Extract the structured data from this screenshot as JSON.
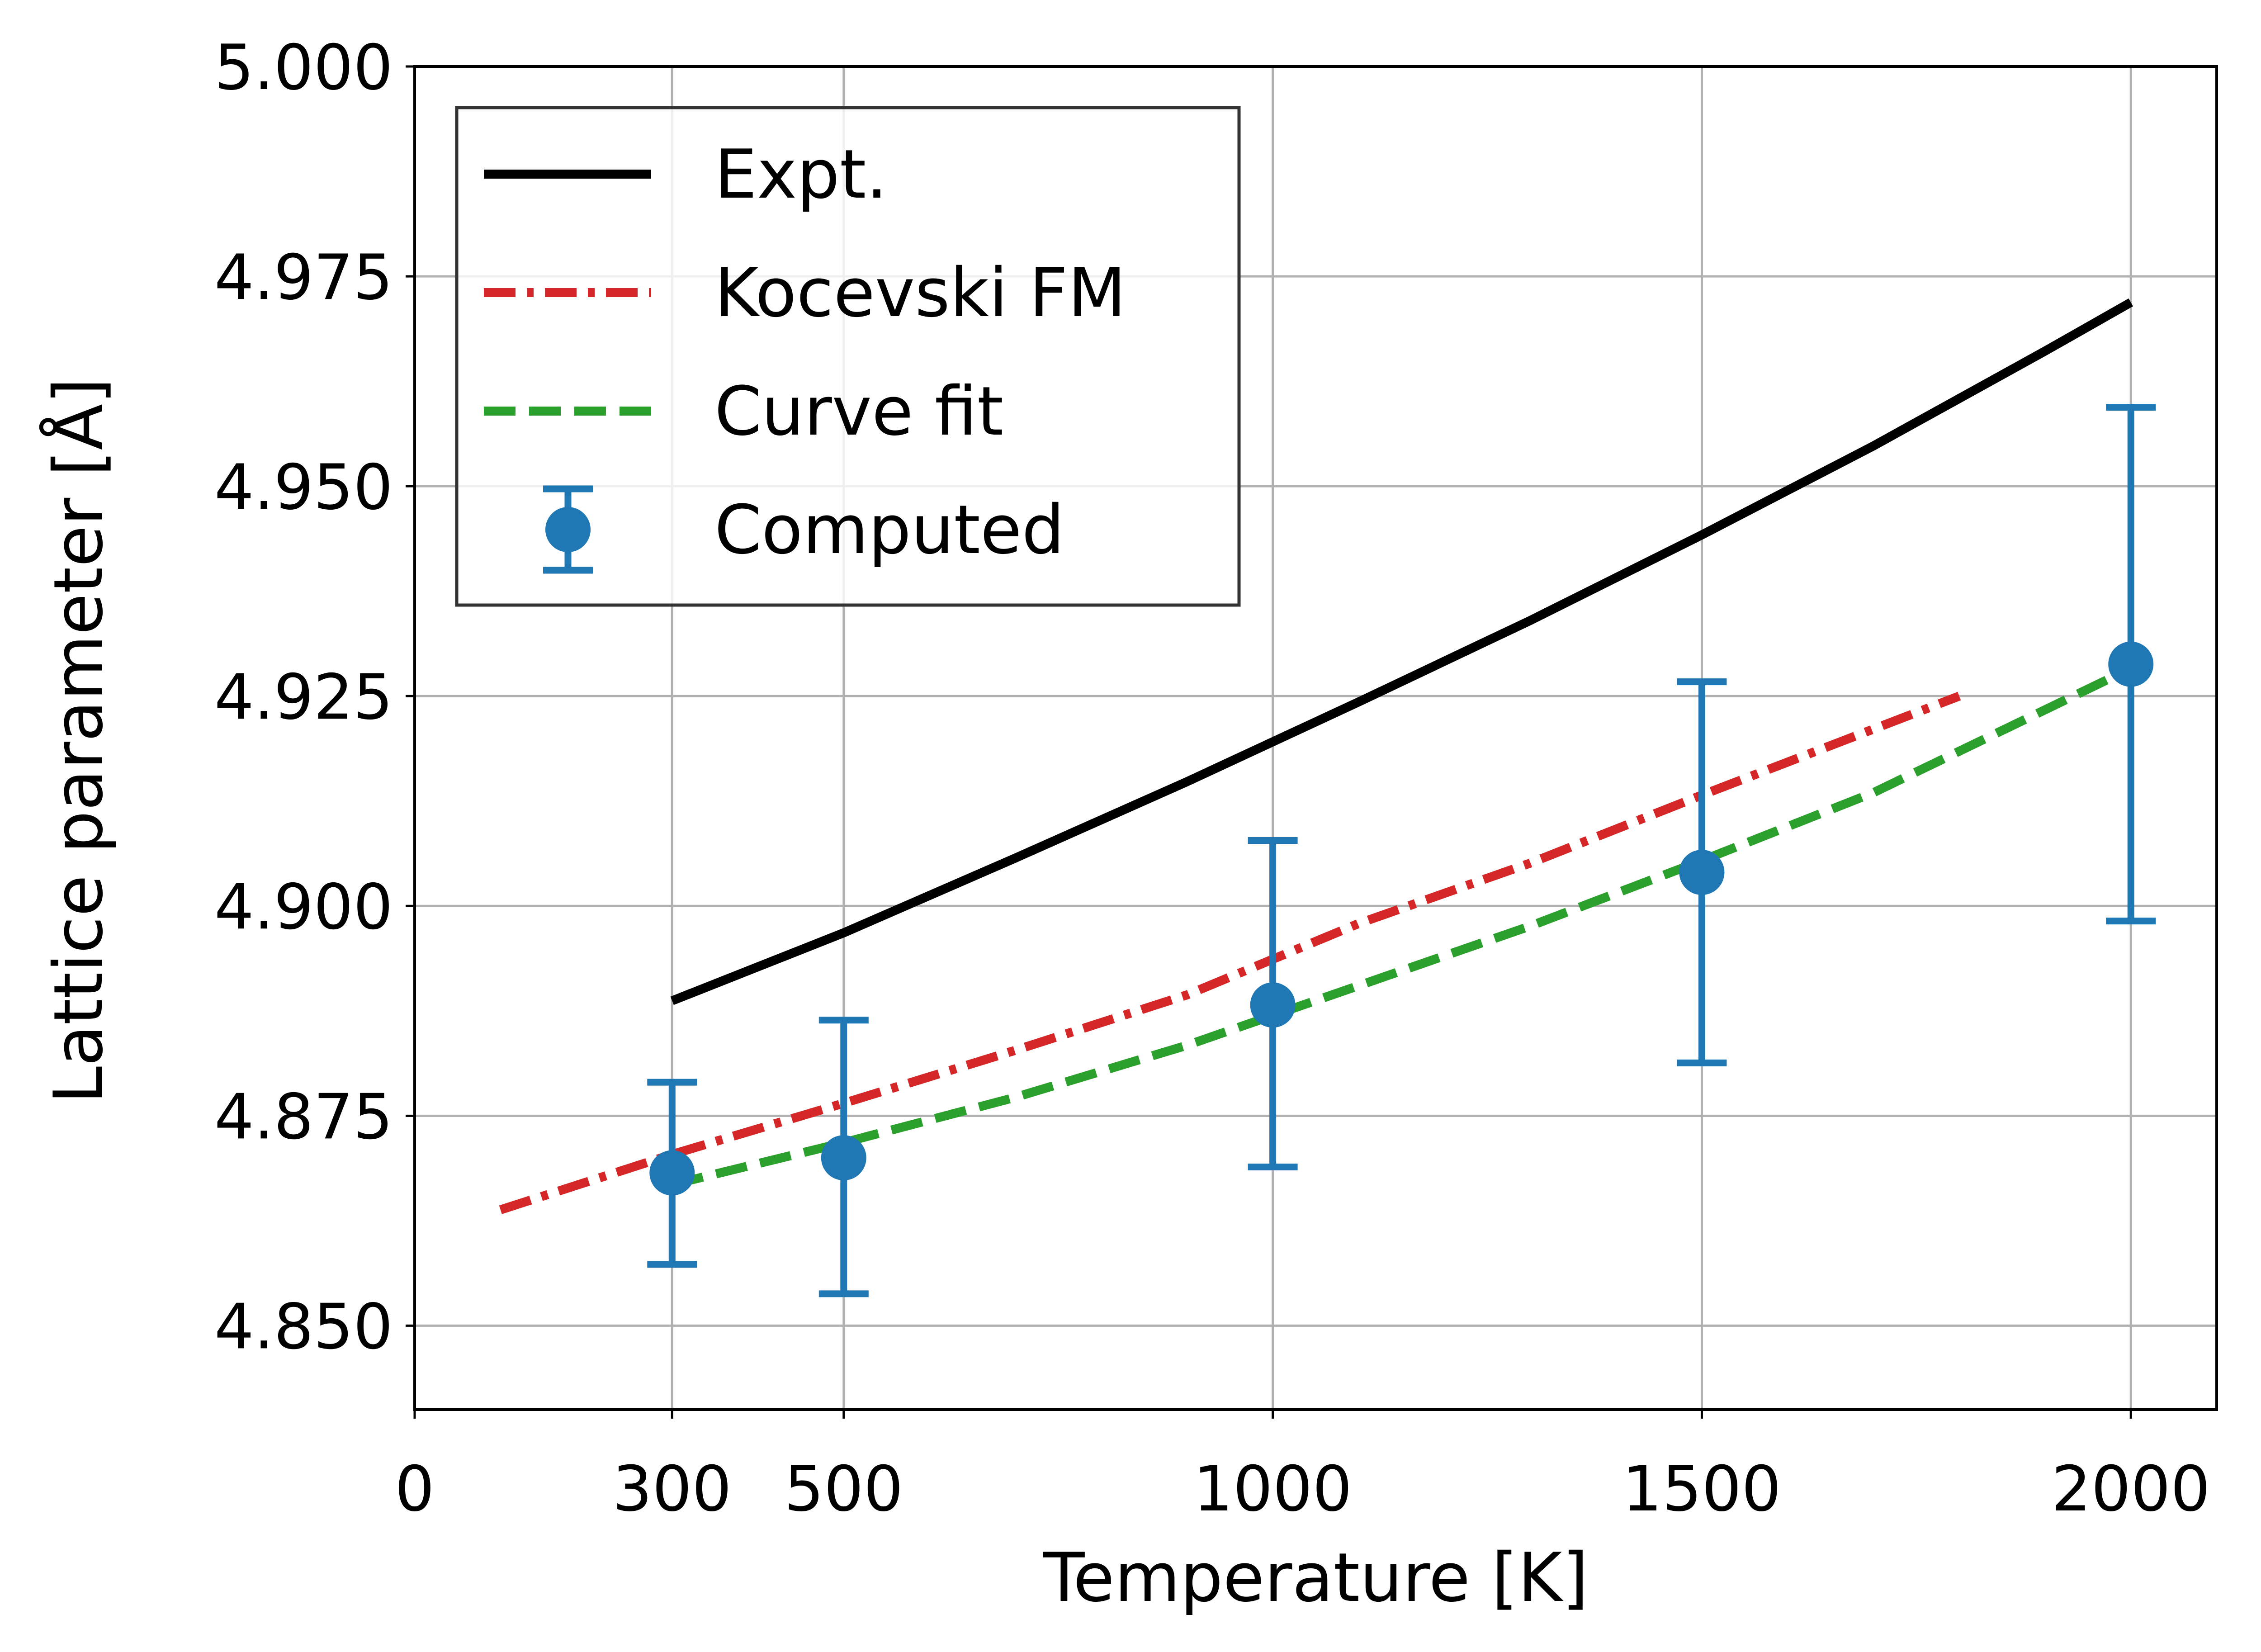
{
  "chart_data": {
    "type": "line",
    "title": "",
    "xlabel": "Temperature [K]",
    "ylabel": "Lattice parameter [Å]",
    "xlim": [
      0,
      2100
    ],
    "ylim": [
      4.84,
      5.0
    ],
    "xticks": [
      0,
      300,
      500,
      1000,
      1500,
      2000
    ],
    "xtick_labels": [
      "0",
      "300",
      "500",
      "1000",
      "1500",
      "2000"
    ],
    "yticks": [
      4.85,
      4.875,
      4.9,
      4.925,
      4.95,
      4.975,
      5.0
    ],
    "ytick_labels": [
      "4.850",
      "4.875",
      "4.900",
      "4.925",
      "4.950",
      "4.975",
      "5.000"
    ],
    "grid": true,
    "legend_position": "upper-left",
    "series": [
      {
        "name": "Expt.",
        "style": "solid",
        "color": "#000000",
        "x": [
          300,
          500,
          700,
          900,
          1100,
          1300,
          1500,
          1700,
          1900,
          2000
        ],
        "y": [
          4.8887,
          4.8968,
          4.9057,
          4.9148,
          4.9243,
          4.934,
          4.9442,
          4.9548,
          4.9661,
          4.9719
        ]
      },
      {
        "name": "Kocevski FM",
        "style": "dashdot",
        "color": "#d62728",
        "x": [
          100,
          300,
          500,
          700,
          900,
          1100,
          1300,
          1500,
          1800
        ],
        "y": [
          4.8638,
          4.8704,
          4.8765,
          4.8828,
          4.8894,
          4.8979,
          4.9051,
          4.9132,
          4.925
        ]
      },
      {
        "name": "Curve fit",
        "style": "dashed",
        "color": "#2ca02c",
        "x": [
          300,
          500,
          700,
          900,
          1100,
          1300,
          1500,
          1700,
          2000
        ],
        "y": [
          4.8668,
          4.8718,
          4.8772,
          4.8834,
          4.8905,
          4.8976,
          4.9054,
          4.9135,
          4.9283
        ]
      },
      {
        "name": "Computed",
        "style": "errorbar",
        "color": "#1f77b4",
        "x": [
          300,
          500,
          1000,
          1500,
          2000
        ],
        "y": [
          4.8682,
          4.87,
          4.8882,
          4.904,
          4.9288
        ],
        "y_lower": [
          4.8573,
          4.8538,
          4.8689,
          4.8813,
          4.8982
        ],
        "y_upper": [
          4.879,
          4.8864,
          4.9078,
          4.9267,
          4.9594
        ]
      }
    ]
  }
}
